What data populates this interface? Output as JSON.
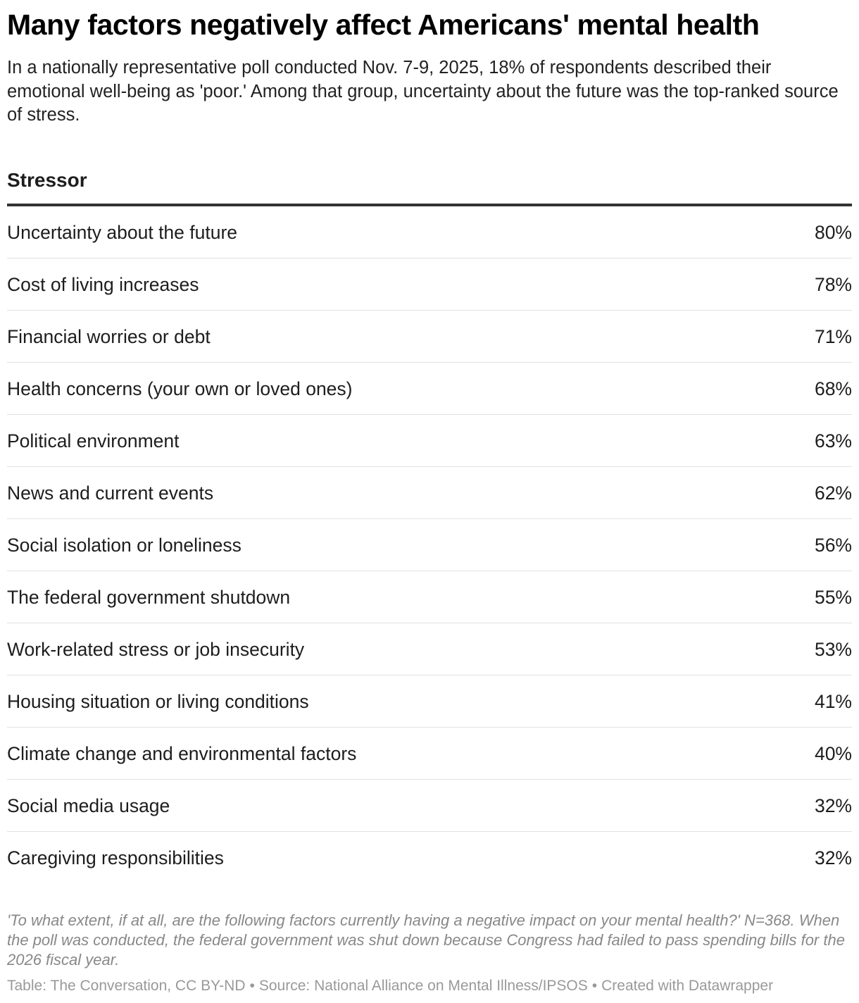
{
  "title": "Many factors negatively affect Americans' mental health",
  "subtitle": "In a nationally representative poll conducted Nov. 7-9, 2025, 18% of respondents described their emotional well-being as 'poor.' Among that group, uncertainty about the future was the top-ranked source of stress.",
  "chart_data": {
    "type": "table",
    "columns": [
      "Stressor",
      ""
    ],
    "rows": [
      {
        "label": "Uncertainty about the future",
        "value": 80,
        "display": "80%"
      },
      {
        "label": "Cost of living increases",
        "value": 78,
        "display": "78%"
      },
      {
        "label": "Financial worries or debt",
        "value": 71,
        "display": "71%"
      },
      {
        "label": "Health concerns (your own or loved ones)",
        "value": 68,
        "display": "68%"
      },
      {
        "label": "Political environment",
        "value": 63,
        "display": "63%"
      },
      {
        "label": "News and current events",
        "value": 62,
        "display": "62%"
      },
      {
        "label": "Social isolation or loneliness",
        "value": 56,
        "display": "56%"
      },
      {
        "label": "The federal government shutdown",
        "value": 55,
        "display": "55%"
      },
      {
        "label": "Work-related stress or job insecurity",
        "value": 53,
        "display": "53%"
      },
      {
        "label": "Housing situation or living conditions",
        "value": 41,
        "display": "41%"
      },
      {
        "label": "Climate change and environmental factors",
        "value": 40,
        "display": "40%"
      },
      {
        "label": "Social media usage",
        "value": 32,
        "display": "32%"
      },
      {
        "label": "Caregiving responsibilities",
        "value": 32,
        "display": "32%"
      }
    ]
  },
  "notes": "'To what extent, if at all, are the following factors currently having a negative impact on your mental health?' N=368. When the poll was conducted, the federal government was shut down because Congress had failed to pass spending bills for the 2026 fiscal year.",
  "footer": {
    "table_credit": "Table: The Conversation, CC BY-ND",
    "source": "Source: National Alliance on Mental Illness/IPSOS",
    "created_with": "Created with Datawrapper",
    "separator": "•"
  }
}
